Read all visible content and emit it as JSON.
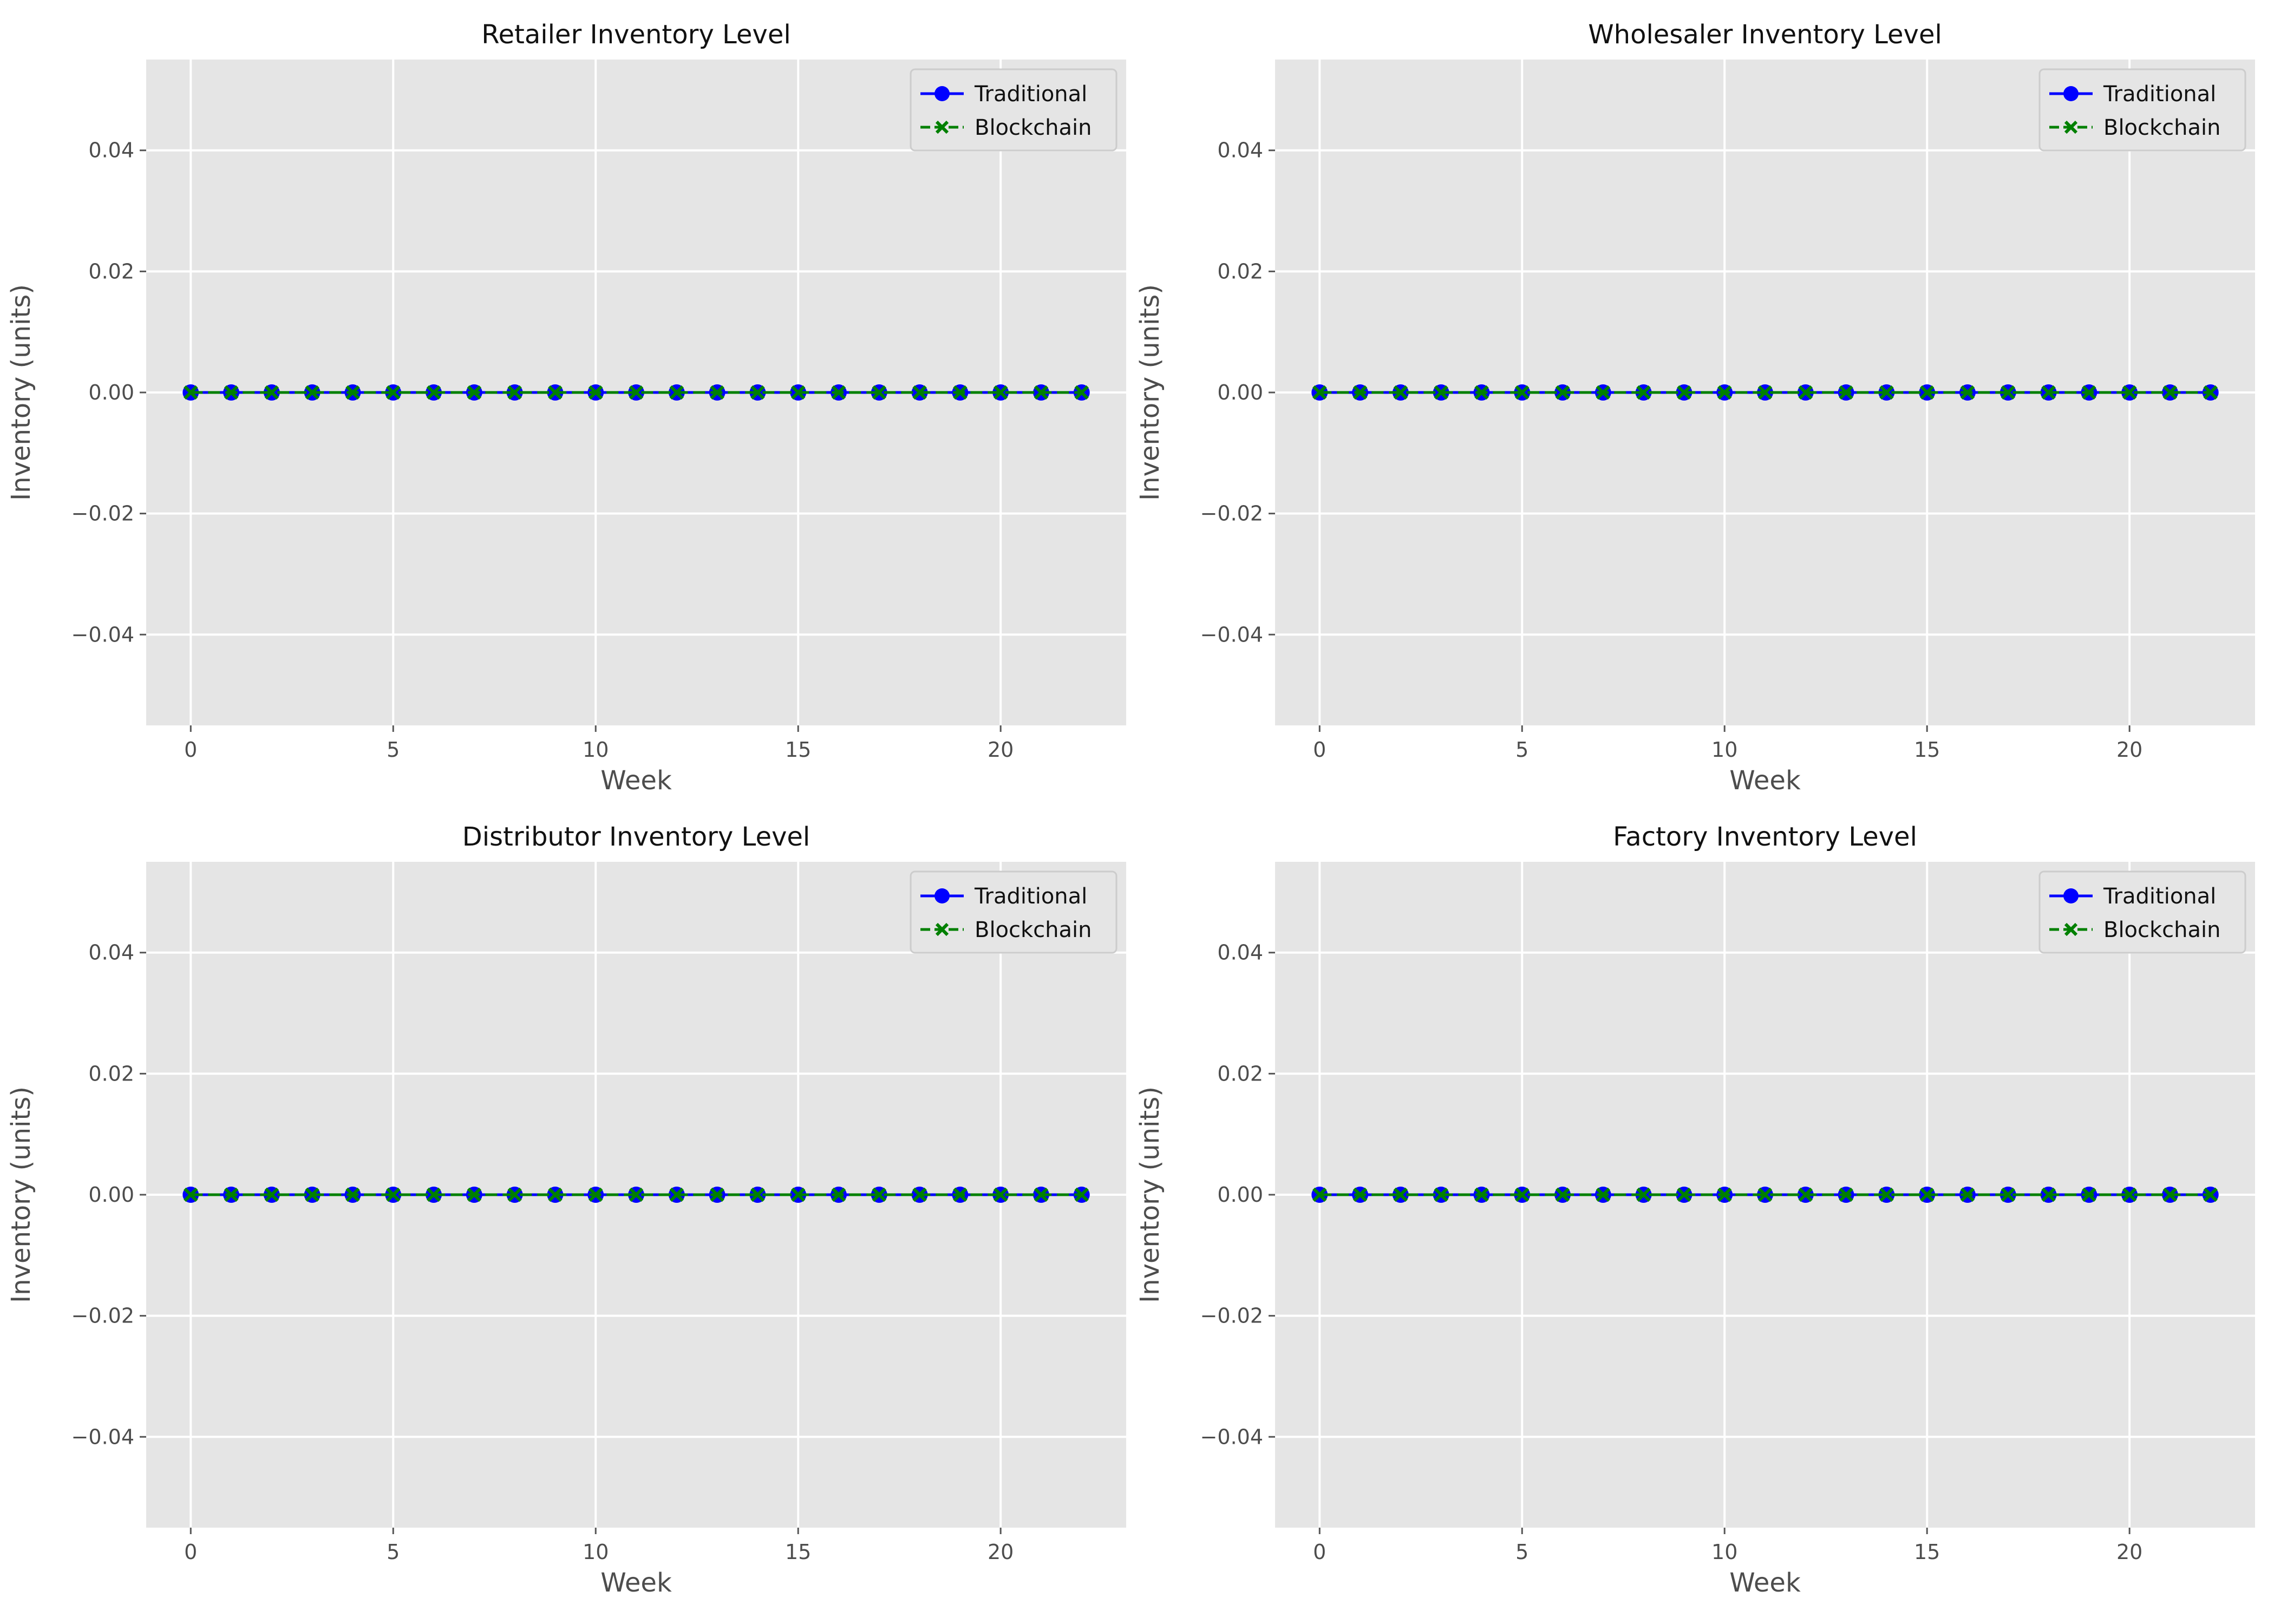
{
  "chart_data": [
    {
      "type": "line",
      "title": "Retailer Inventory Level",
      "xlabel": "Week",
      "ylabel": "Inventory (units)",
      "xlim": [
        -1.1,
        23.1
      ],
      "ylim": [
        -0.055,
        0.055
      ],
      "xticks": [
        0,
        5,
        10,
        15,
        20
      ],
      "yticks": [
        0.04,
        0.02,
        0.0,
        -0.02,
        -0.04
      ],
      "ytick_labels": [
        "0.04",
        "0.02",
        "0.00",
        "−0.02",
        "−0.04"
      ],
      "grid": true,
      "legend": "top-right",
      "x": [
        0,
        1,
        2,
        3,
        4,
        5,
        6,
        7,
        8,
        9,
        10,
        11,
        12,
        13,
        14,
        15,
        16,
        17,
        18,
        19,
        20,
        21,
        22
      ],
      "series": [
        {
          "name": "Traditional",
          "color": "#0000ff",
          "marker": "circle",
          "linestyle": "solid",
          "values": [
            0,
            0,
            0,
            0,
            0,
            0,
            0,
            0,
            0,
            0,
            0,
            0,
            0,
            0,
            0,
            0,
            0,
            0,
            0,
            0,
            0,
            0,
            0
          ]
        },
        {
          "name": "Blockchain",
          "color": "#008000",
          "marker": "x",
          "linestyle": "dashed",
          "values": [
            0,
            0,
            0,
            0,
            0,
            0,
            0,
            0,
            0,
            0,
            0,
            0,
            0,
            0,
            0,
            0,
            0,
            0,
            0,
            0,
            0,
            0,
            0
          ]
        }
      ]
    },
    {
      "type": "line",
      "title": "Wholesaler Inventory Level",
      "xlabel": "Week",
      "ylabel": "Inventory (units)",
      "xlim": [
        -1.1,
        23.1
      ],
      "ylim": [
        -0.055,
        0.055
      ],
      "xticks": [
        0,
        5,
        10,
        15,
        20
      ],
      "yticks": [
        0.04,
        0.02,
        0.0,
        -0.02,
        -0.04
      ],
      "ytick_labels": [
        "0.04",
        "0.02",
        "0.00",
        "−0.02",
        "−0.04"
      ],
      "grid": true,
      "legend": "top-right",
      "x": [
        0,
        1,
        2,
        3,
        4,
        5,
        6,
        7,
        8,
        9,
        10,
        11,
        12,
        13,
        14,
        15,
        16,
        17,
        18,
        19,
        20,
        21,
        22
      ],
      "series": [
        {
          "name": "Traditional",
          "color": "#0000ff",
          "marker": "circle",
          "linestyle": "solid",
          "values": [
            0,
            0,
            0,
            0,
            0,
            0,
            0,
            0,
            0,
            0,
            0,
            0,
            0,
            0,
            0,
            0,
            0,
            0,
            0,
            0,
            0,
            0,
            0
          ]
        },
        {
          "name": "Blockchain",
          "color": "#008000",
          "marker": "x",
          "linestyle": "dashed",
          "values": [
            0,
            0,
            0,
            0,
            0,
            0,
            0,
            0,
            0,
            0,
            0,
            0,
            0,
            0,
            0,
            0,
            0,
            0,
            0,
            0,
            0,
            0,
            0
          ]
        }
      ]
    },
    {
      "type": "line",
      "title": "Distributor Inventory Level",
      "xlabel": "Week",
      "ylabel": "Inventory (units)",
      "xlim": [
        -1.1,
        23.1
      ],
      "ylim": [
        -0.055,
        0.055
      ],
      "xticks": [
        0,
        5,
        10,
        15,
        20
      ],
      "yticks": [
        0.04,
        0.02,
        0.0,
        -0.02,
        -0.04
      ],
      "ytick_labels": [
        "0.04",
        "0.02",
        "0.00",
        "−0.02",
        "−0.04"
      ],
      "grid": true,
      "legend": "top-right",
      "x": [
        0,
        1,
        2,
        3,
        4,
        5,
        6,
        7,
        8,
        9,
        10,
        11,
        12,
        13,
        14,
        15,
        16,
        17,
        18,
        19,
        20,
        21,
        22
      ],
      "series": [
        {
          "name": "Traditional",
          "color": "#0000ff",
          "marker": "circle",
          "linestyle": "solid",
          "values": [
            0,
            0,
            0,
            0,
            0,
            0,
            0,
            0,
            0,
            0,
            0,
            0,
            0,
            0,
            0,
            0,
            0,
            0,
            0,
            0,
            0,
            0,
            0
          ]
        },
        {
          "name": "Blockchain",
          "color": "#008000",
          "marker": "x",
          "linestyle": "dashed",
          "values": [
            0,
            0,
            0,
            0,
            0,
            0,
            0,
            0,
            0,
            0,
            0,
            0,
            0,
            0,
            0,
            0,
            0,
            0,
            0,
            0,
            0,
            0,
            0
          ]
        }
      ]
    },
    {
      "type": "line",
      "title": "Factory Inventory Level",
      "xlabel": "Week",
      "ylabel": "Inventory (units)",
      "xlim": [
        -1.1,
        23.1
      ],
      "ylim": [
        -0.055,
        0.055
      ],
      "xticks": [
        0,
        5,
        10,
        15,
        20
      ],
      "yticks": [
        0.04,
        0.02,
        0.0,
        -0.02,
        -0.04
      ],
      "ytick_labels": [
        "0.04",
        "0.02",
        "0.00",
        "−0.02",
        "−0.04"
      ],
      "grid": true,
      "legend": "top-right",
      "x": [
        0,
        1,
        2,
        3,
        4,
        5,
        6,
        7,
        8,
        9,
        10,
        11,
        12,
        13,
        14,
        15,
        16,
        17,
        18,
        19,
        20,
        21,
        22
      ],
      "series": [
        {
          "name": "Traditional",
          "color": "#0000ff",
          "marker": "circle",
          "linestyle": "solid",
          "values": [
            0,
            0,
            0,
            0,
            0,
            0,
            0,
            0,
            0,
            0,
            0,
            0,
            0,
            0,
            0,
            0,
            0,
            0,
            0,
            0,
            0,
            0,
            0
          ]
        },
        {
          "name": "Blockchain",
          "color": "#008000",
          "marker": "x",
          "linestyle": "dashed",
          "values": [
            0,
            0,
            0,
            0,
            0,
            0,
            0,
            0,
            0,
            0,
            0,
            0,
            0,
            0,
            0,
            0,
            0,
            0,
            0,
            0,
            0,
            0,
            0
          ]
        }
      ]
    }
  ]
}
